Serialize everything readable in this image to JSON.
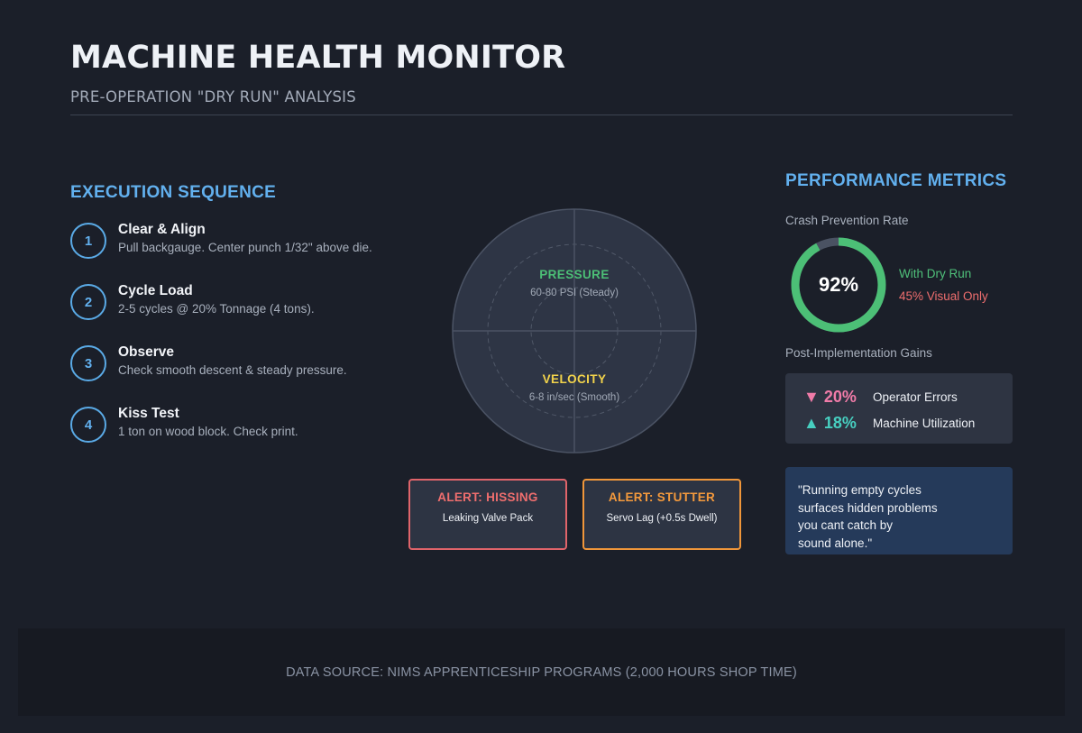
{
  "header": {
    "title": "MACHINE HEALTH MONITOR",
    "subtitle": "PRE-OPERATION \"DRY RUN\" ANALYSIS"
  },
  "sequence": {
    "title": "EXECUTION SEQUENCE",
    "steps": [
      {
        "num": "1",
        "title": "Clear & Align",
        "desc": "Pull backgauge. Center punch 1/32\" above die."
      },
      {
        "num": "2",
        "title": "Cycle Load",
        "desc": "2-5 cycles @ 20% Tonnage (4 tons)."
      },
      {
        "num": "3",
        "title": "Observe",
        "desc": "Check smooth descent & steady pressure."
      },
      {
        "num": "4",
        "title": "Kiss Test",
        "desc": "1 ton on wood block. Check print."
      }
    ]
  },
  "gauge": {
    "pressure": {
      "label": "PRESSURE",
      "value": "60-80 PSI (Steady)",
      "color": "#4cbf76"
    },
    "velocity": {
      "label": "VELOCITY",
      "value": "6-8 in/sec (Smooth)",
      "color": "#f2d34b"
    }
  },
  "alerts": [
    {
      "title": "ALERT: HISSING",
      "desc": "Leaking Valve Pack",
      "color": "#e0646a"
    },
    {
      "title": "ALERT: STUTTER",
      "desc": "Servo Lag (+0.5s Dwell)",
      "color": "#f0963a"
    }
  ],
  "metrics": {
    "title": "PERFORMANCE METRICS",
    "crash_label": "Crash Prevention Rate",
    "donut": {
      "value_text": "92%",
      "fraction": 0.92,
      "color": "#4cbf76",
      "track_color": "#4a5262"
    },
    "legend_a": "With Dry Run",
    "legend_b": "45% Visual Only",
    "gains_label": "Post-Implementation Gains",
    "gains": [
      {
        "value": "▼ 20%",
        "label": "Operator Errors"
      },
      {
        "value": "▲ 18%",
        "label": "Machine Utilization"
      }
    ]
  },
  "quote": {
    "lines": [
      "\"Running empty cycles",
      "surfaces hidden problems",
      "you cant catch by",
      "sound alone.\""
    ]
  },
  "footer": {
    "text": "DATA SOURCE: NIMS APPRENTICESHIP PROGRAMS (2,000 HOURS SHOP TIME)"
  }
}
